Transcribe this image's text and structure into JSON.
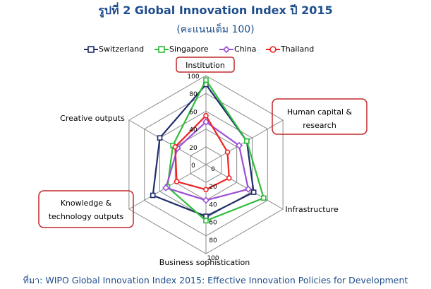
{
  "header": {
    "title": "รูปที่ 2 Global Innovation Index ปี 2015",
    "subtitle": "(คะแนนเต็ม 100)"
  },
  "source": "ที่มา: WIPO Global Innovation Index 2015: Effective Innovation Policies for Development",
  "chart_data": {
    "type": "radar",
    "categories": [
      "Institution",
      "Human capital & research",
      "Infrastructure",
      "Business sophistication",
      "Knowledge & technology outputs",
      "Creative outputs"
    ],
    "highlighted_categories": [
      "Institution",
      "Human capital & research",
      "Knowledge & technology outputs"
    ],
    "radial_ticks": [
      "0",
      "20",
      "40",
      "60",
      "80",
      "100"
    ],
    "range": [
      0,
      100
    ],
    "grid": true,
    "legend_position": "top",
    "series": [
      {
        "name": "Switzerland",
        "color": "#1f2d6b",
        "marker": "square",
        "values": [
          90,
          53,
          62,
          58,
          69,
          60
        ]
      },
      {
        "name": "Singapore",
        "color": "#2ebd3a",
        "marker": "square",
        "values": [
          95,
          53,
          75,
          63,
          50,
          43
        ]
      },
      {
        "name": "China",
        "color": "#9b4fd6",
        "marker": "diamond",
        "values": [
          48,
          43,
          55,
          40,
          52,
          37
        ]
      },
      {
        "name": "Thailand",
        "color": "#ee2222",
        "marker": "circle",
        "values": [
          55,
          28,
          30,
          28,
          38,
          40
        ]
      }
    ]
  }
}
